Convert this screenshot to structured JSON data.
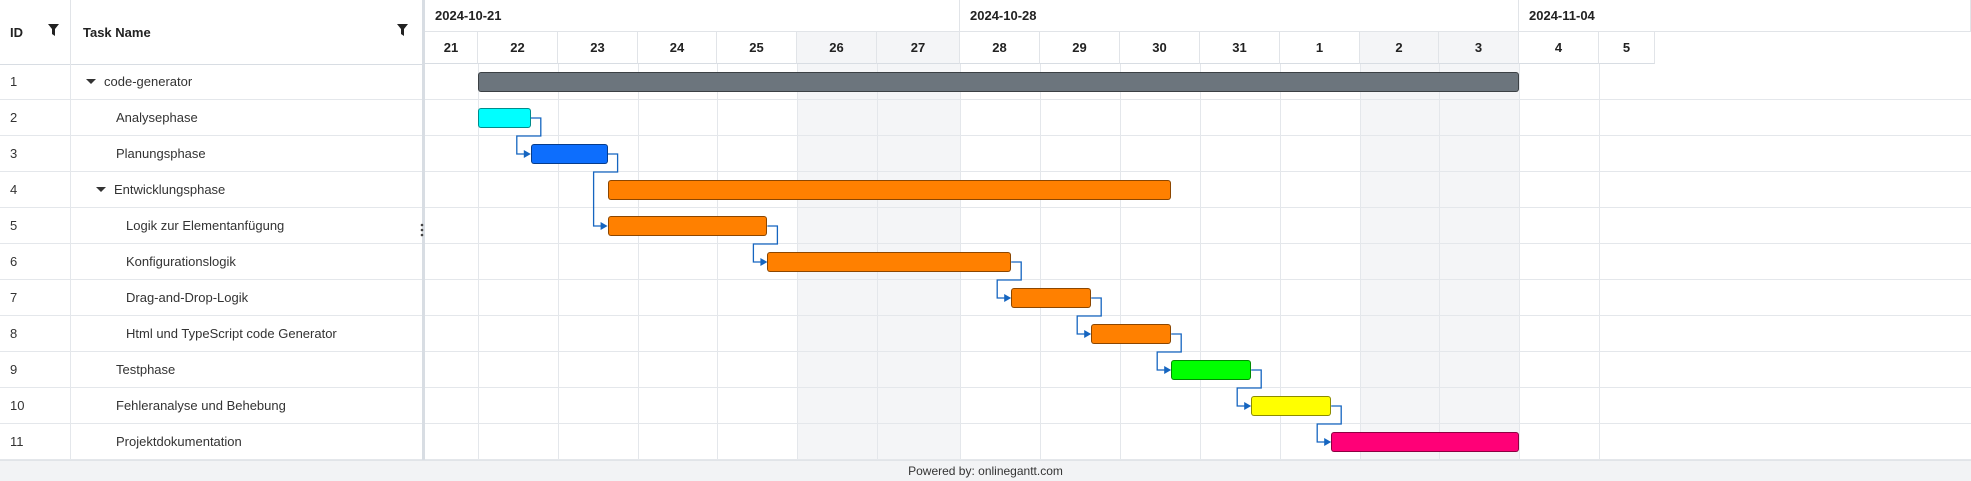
{
  "grid": {
    "id_header": "ID",
    "name_header": "Task Name",
    "rows": [
      {
        "id": "1",
        "name": "code-generator",
        "level": 0,
        "expanded": true
      },
      {
        "id": "2",
        "name": "Analysephase",
        "level": 1
      },
      {
        "id": "3",
        "name": "Planungsphase",
        "level": 1
      },
      {
        "id": "4",
        "name": "Entwicklungsphase",
        "level": 1,
        "expanded": true
      },
      {
        "id": "5",
        "name": "Logik zur Elementanfügung",
        "level": 2
      },
      {
        "id": "6",
        "name": "Konfigurationslogik",
        "level": 2
      },
      {
        "id": "7",
        "name": "Drag-and-Drop-Logik",
        "level": 2
      },
      {
        "id": "8",
        "name": "Html und TypeScript code Generator",
        "level": 2
      },
      {
        "id": "9",
        "name": "Testphase",
        "level": 1
      },
      {
        "id": "10",
        "name": "Fehleranalyse und Behebung",
        "level": 1
      },
      {
        "id": "11",
        "name": "Projektdokumentation",
        "level": 1
      }
    ]
  },
  "timeline": {
    "weeks": [
      "2024-10-21",
      "2024-10-28",
      "2024-11-04"
    ],
    "days": [
      "21",
      "22",
      "23",
      "24",
      "25",
      "26",
      "27",
      "28",
      "29",
      "30",
      "31",
      "1",
      "2",
      "3",
      "4",
      "5"
    ],
    "weekend_day_indices": [
      5,
      6,
      12,
      13
    ]
  },
  "tasks": [
    {
      "row": 0,
      "start": 1.0,
      "end": 14.0,
      "color": "#6c757d"
    },
    {
      "row": 1,
      "start": 1.0,
      "end": 1.66,
      "color": "#00ffff"
    },
    {
      "row": 2,
      "start": 1.66,
      "end": 2.62,
      "color": "#0d6efd"
    },
    {
      "row": 3,
      "start": 2.62,
      "end": 9.64,
      "color": "#ff8000"
    },
    {
      "row": 4,
      "start": 2.62,
      "end": 4.63,
      "color": "#ff8000"
    },
    {
      "row": 5,
      "start": 4.63,
      "end": 7.64,
      "color": "#ff8000"
    },
    {
      "row": 6,
      "start": 7.64,
      "end": 8.64,
      "color": "#ff8000"
    },
    {
      "row": 7,
      "start": 8.64,
      "end": 9.64,
      "color": "#ff8000"
    },
    {
      "row": 8,
      "start": 9.64,
      "end": 10.64,
      "color": "#00ff00"
    },
    {
      "row": 9,
      "start": 10.64,
      "end": 11.64,
      "color": "#ffff00"
    },
    {
      "row": 10,
      "start": 11.64,
      "end": 14.0,
      "color": "#ff0077"
    }
  ],
  "links": [
    [
      1,
      2
    ],
    [
      2,
      4
    ],
    [
      4,
      5
    ],
    [
      5,
      6
    ],
    [
      6,
      7
    ],
    [
      7,
      8
    ],
    [
      8,
      9
    ],
    [
      9,
      10
    ]
  ],
  "colors": {
    "link": "#1565c0"
  },
  "footer": {
    "text": "Powered by: onlinegantt.com"
  }
}
